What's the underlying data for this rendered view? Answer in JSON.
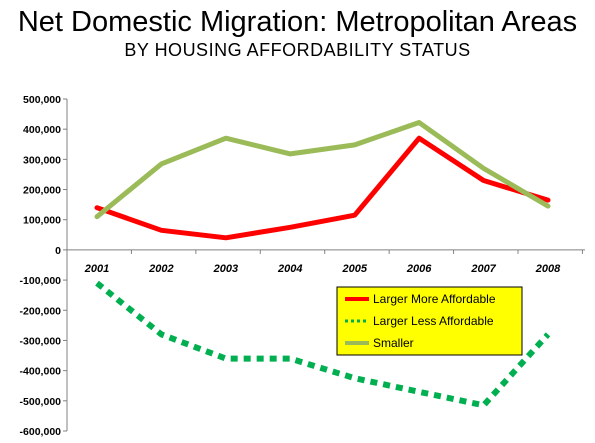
{
  "title": "Net Domestic Migration: Metropolitan Areas",
  "subtitle": "BY HOUSING AFFORDABILITY STATUS",
  "colors": {
    "legend_bg": "#ffff00",
    "axis": "#808080"
  },
  "chart_data": {
    "type": "line",
    "title": "Net Domestic Migration: Metropolitan Areas",
    "subtitle": "BY HOUSING AFFORDABILITY STATUS",
    "xlabel": "",
    "ylabel": "",
    "categories": [
      "2001",
      "2002",
      "2003",
      "2004",
      "2005",
      "2006",
      "2007",
      "2008"
    ],
    "ylim": [
      -600000,
      500000
    ],
    "y_ticks": [
      500000,
      400000,
      300000,
      200000,
      100000,
      0,
      -100000,
      -200000,
      -300000,
      -400000,
      -500000,
      -600000
    ],
    "y_tick_labels": [
      "500,000",
      "400,000",
      "300,000",
      "200,000",
      "100,000",
      "0",
      "-100,000",
      "-200,000",
      "-300,000",
      "-400,000",
      "-500,000",
      "-600,000"
    ],
    "grid": false,
    "legend_position": "lower-right",
    "series": [
      {
        "name": "Larger More Affordable",
        "color": "#ff0000",
        "style": "solid",
        "values": [
          140000,
          65000,
          40000,
          75000,
          115000,
          370000,
          230000,
          165000
        ]
      },
      {
        "name": "Larger Less Affordable",
        "color": "#00b050",
        "style": "dotted",
        "values": [
          -110000,
          -280000,
          -360000,
          -360000,
          -425000,
          -470000,
          -515000,
          -280000
        ]
      },
      {
        "name": "Smaller",
        "color": "#9bbb59",
        "style": "solid",
        "values": [
          110000,
          285000,
          370000,
          318000,
          348000,
          422000,
          270000,
          145000
        ]
      }
    ]
  }
}
